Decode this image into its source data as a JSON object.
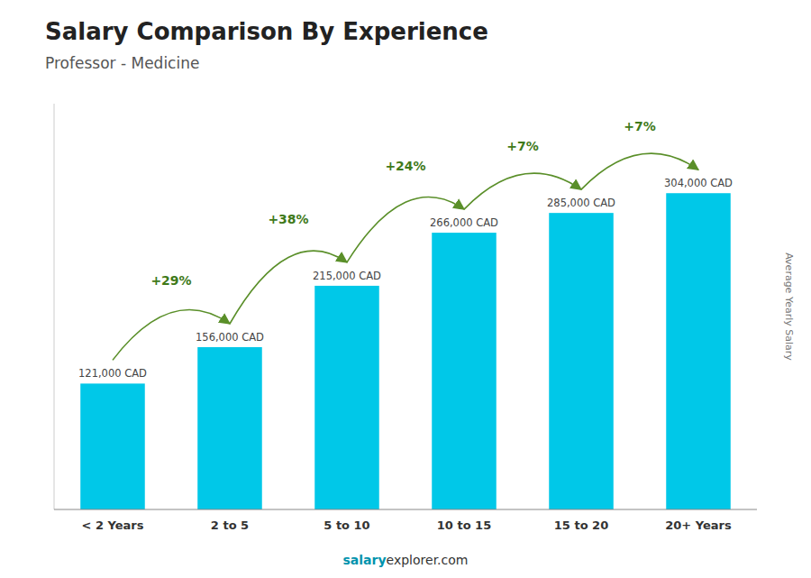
{
  "chart_data": {
    "type": "bar",
    "title": "Salary Comparison By Experience",
    "subtitle": "Professor - Medicine",
    "ylabel": "Average Yearly Salary",
    "footer": [
      "salary",
      "explorer.com"
    ],
    "categories": [
      "< 2 Years",
      "2 to 5",
      "5 to 10",
      "10 to 15",
      "15 to 20",
      "20+ Years"
    ],
    "values": [
      121000,
      156000,
      215000,
      266000,
      285000,
      304000
    ],
    "value_labels": [
      "121,000 CAD",
      "156,000 CAD",
      "215,000 CAD",
      "266,000 CAD",
      "285,000 CAD",
      "304,000 CAD"
    ],
    "data_labels": true,
    "annotations": [
      "+29%",
      "+38%",
      "+24%",
      "+7%",
      "+7%"
    ],
    "color": "#00c8e8",
    "ylim": [
      0,
      390000
    ],
    "tick_labels": "x",
    "grid": false
  }
}
